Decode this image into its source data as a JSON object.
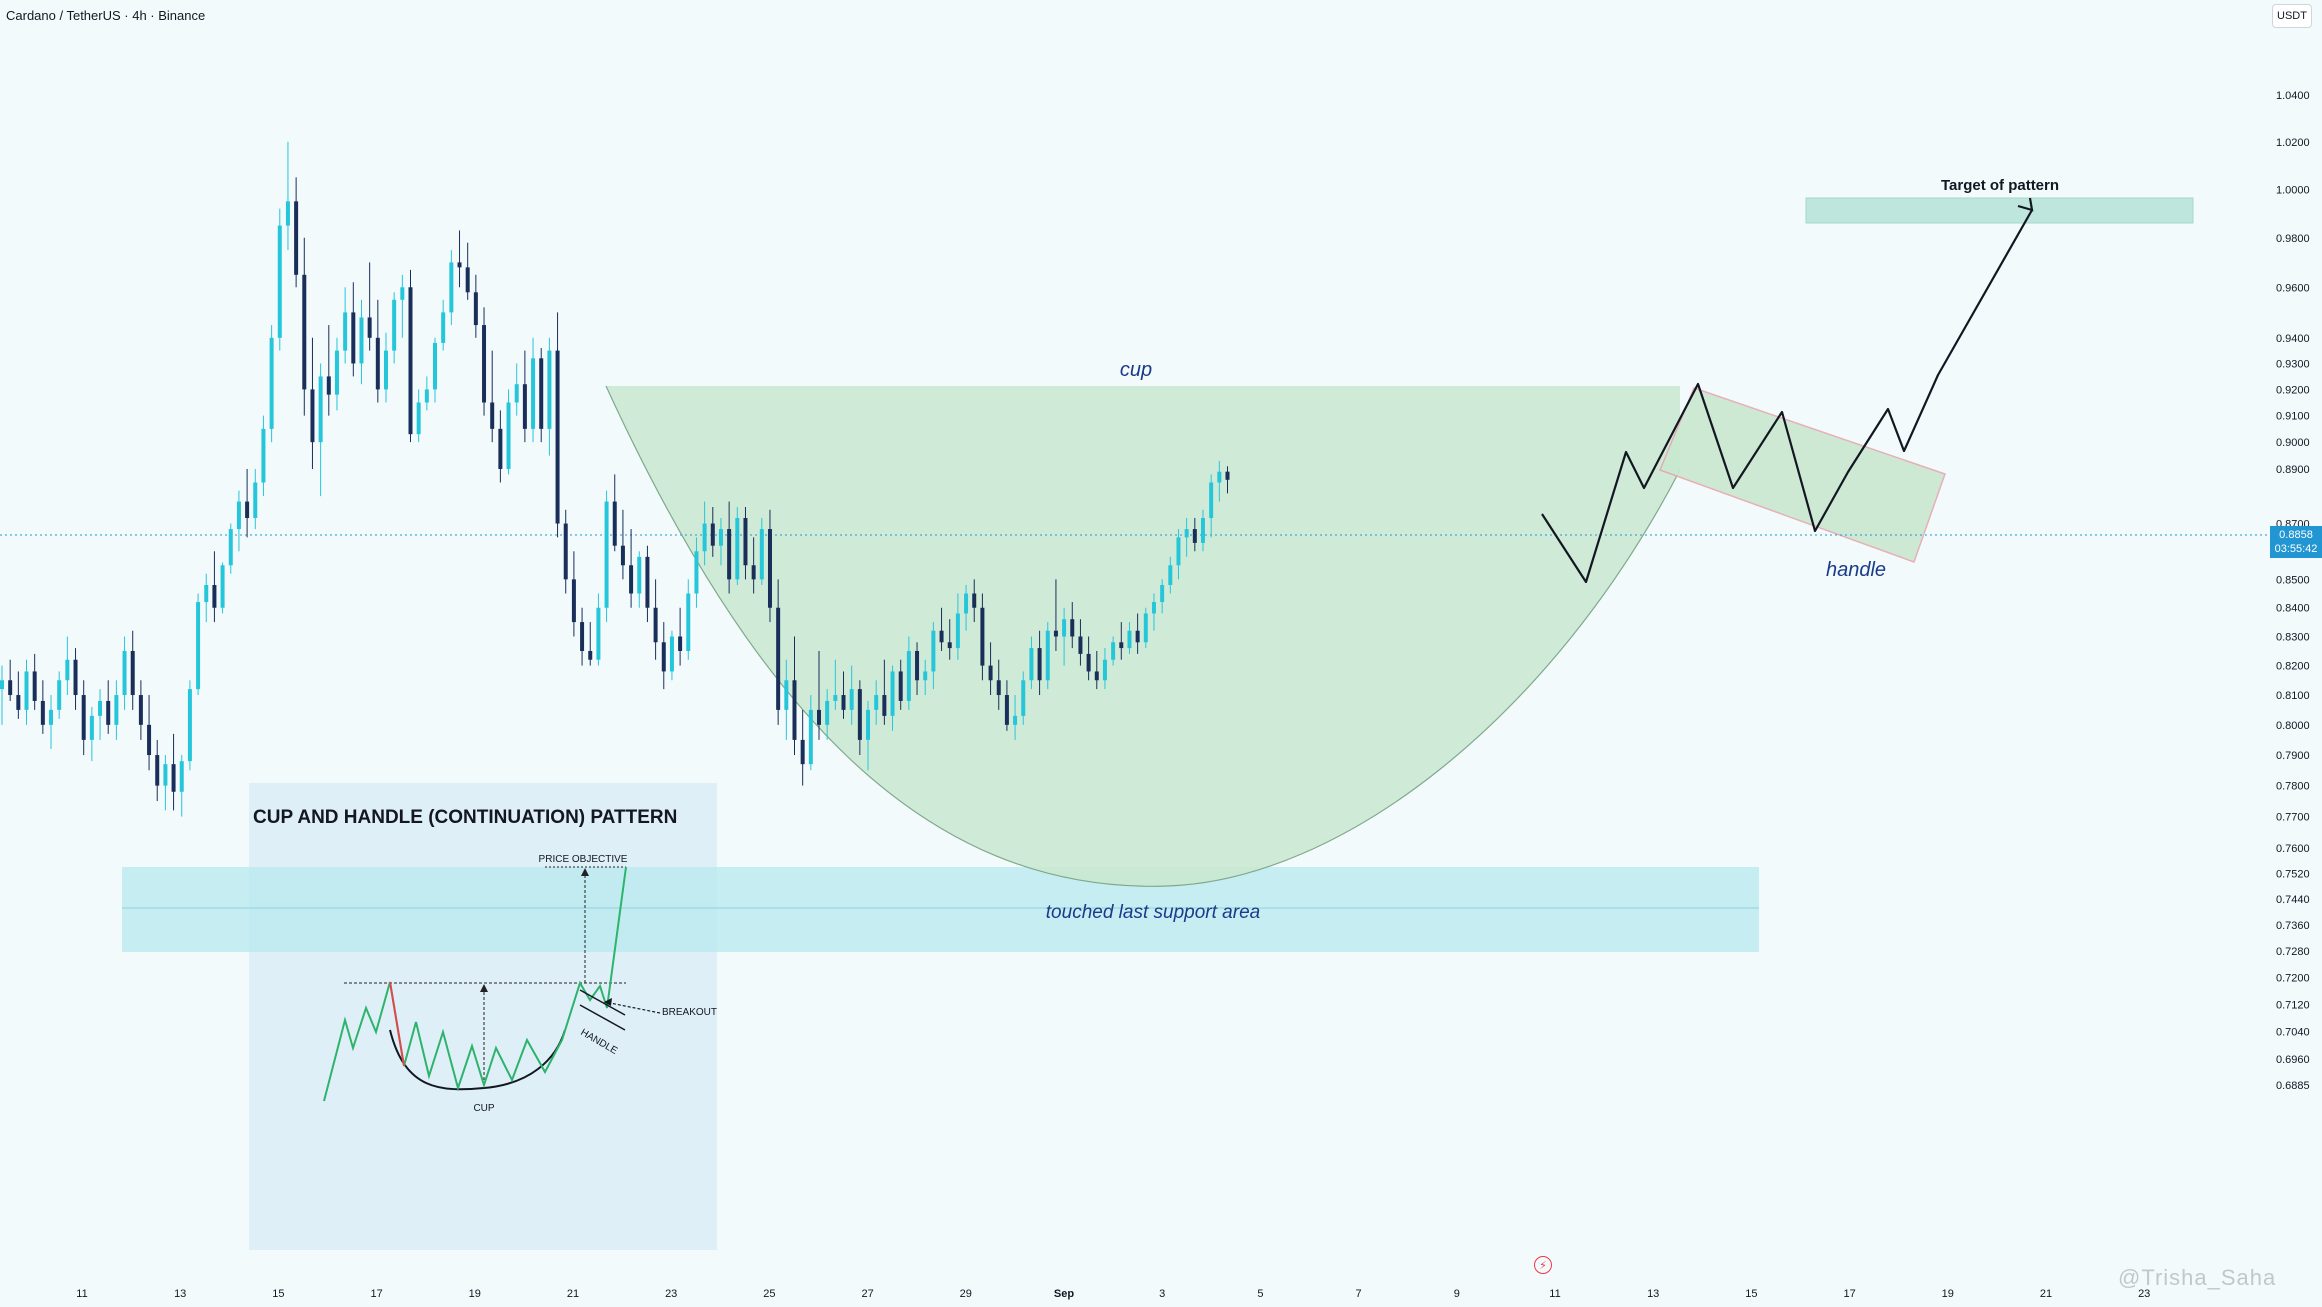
{
  "header": {
    "symbol_title": "Cardano / TetherUS · 4h · Binance",
    "currency": "USDT"
  },
  "price_tag": {
    "price": "0.8858",
    "countdown": "03:55:42"
  },
  "watermark": "@Trisha_Saha",
  "colors": {
    "up": "#26c6da",
    "down": "#1a2e5a",
    "cup_fill": "#c9e8d0",
    "support_fill": "#b7e9ef",
    "handle_border": "#e6a7b0",
    "target_fill": "#bfe6dc",
    "projection": "#131722",
    "price_line": "#2196d3",
    "annotation": "#1a3a8a",
    "inset_bg": "#d9ecf6"
  },
  "annotations": {
    "cup": "cup",
    "handle": "handle",
    "support": "touched last support area",
    "target": "Target of pattern"
  },
  "inset": {
    "title": "CUP AND HANDLE (CONTINUATION) PATTERN",
    "price_objective": "PRICE OBJECTIVE",
    "breakout": "BREAKOUT",
    "handle": "HANDLE",
    "cup": "CUP"
  },
  "chart_data": {
    "type": "candlestick",
    "title": "Cardano / TetherUS · 4h · Binance",
    "x_ticks": [
      "11",
      "13",
      "15",
      "17",
      "19",
      "21",
      "23",
      "25",
      "27",
      "29",
      "Sep",
      "3",
      "5",
      "7",
      "9",
      "11",
      "13",
      "15",
      "17",
      "19",
      "21",
      "23"
    ],
    "y_ticks": [
      "1.0400",
      "1.0200",
      "1.0000",
      "0.9800",
      "0.9600",
      "0.9400",
      "0.9300",
      "0.9200",
      "0.9100",
      "0.9000",
      "0.8900",
      "0.8700",
      "0.8600",
      "0.8500",
      "0.8400",
      "0.8300",
      "0.8200",
      "0.8100",
      "0.8000",
      "0.7900",
      "0.7800",
      "0.7700",
      "0.7600",
      "0.7520",
      "0.7440",
      "0.7360",
      "0.7280",
      "0.7200",
      "0.7120",
      "0.7040",
      "0.6960",
      "0.6885"
    ],
    "y_scale": "log",
    "last_price": 0.8858,
    "series": [
      {
        "o": 0.812,
        "h": 0.82,
        "l": 0.8,
        "c": 0.815
      },
      {
        "o": 0.815,
        "h": 0.822,
        "l": 0.808,
        "c": 0.81
      },
      {
        "o": 0.81,
        "h": 0.818,
        "l": 0.802,
        "c": 0.805
      },
      {
        "o": 0.805,
        "h": 0.822,
        "l": 0.8,
        "c": 0.818
      },
      {
        "o": 0.818,
        "h": 0.824,
        "l": 0.805,
        "c": 0.808
      },
      {
        "o": 0.808,
        "h": 0.815,
        "l": 0.797,
        "c": 0.8
      },
      {
        "o": 0.8,
        "h": 0.81,
        "l": 0.792,
        "c": 0.805
      },
      {
        "o": 0.805,
        "h": 0.818,
        "l": 0.802,
        "c": 0.815
      },
      {
        "o": 0.815,
        "h": 0.83,
        "l": 0.81,
        "c": 0.822
      },
      {
        "o": 0.822,
        "h": 0.826,
        "l": 0.805,
        "c": 0.81
      },
      {
        "o": 0.81,
        "h": 0.815,
        "l": 0.79,
        "c": 0.795
      },
      {
        "o": 0.795,
        "h": 0.806,
        "l": 0.788,
        "c": 0.803
      },
      {
        "o": 0.803,
        "h": 0.812,
        "l": 0.795,
        "c": 0.808
      },
      {
        "o": 0.808,
        "h": 0.815,
        "l": 0.797,
        "c": 0.8
      },
      {
        "o": 0.8,
        "h": 0.815,
        "l": 0.795,
        "c": 0.81
      },
      {
        "o": 0.81,
        "h": 0.83,
        "l": 0.805,
        "c": 0.825
      },
      {
        "o": 0.825,
        "h": 0.832,
        "l": 0.805,
        "c": 0.81
      },
      {
        "o": 0.81,
        "h": 0.815,
        "l": 0.795,
        "c": 0.8
      },
      {
        "o": 0.8,
        "h": 0.81,
        "l": 0.785,
        "c": 0.79
      },
      {
        "o": 0.79,
        "h": 0.795,
        "l": 0.775,
        "c": 0.78
      },
      {
        "o": 0.78,
        "h": 0.79,
        "l": 0.772,
        "c": 0.787
      },
      {
        "o": 0.787,
        "h": 0.797,
        "l": 0.772,
        "c": 0.778
      },
      {
        "o": 0.778,
        "h": 0.79,
        "l": 0.77,
        "c": 0.788
      },
      {
        "o": 0.788,
        "h": 0.815,
        "l": 0.785,
        "c": 0.812
      },
      {
        "o": 0.812,
        "h": 0.845,
        "l": 0.81,
        "c": 0.842
      },
      {
        "o": 0.842,
        "h": 0.852,
        "l": 0.835,
        "c": 0.848
      },
      {
        "o": 0.848,
        "h": 0.86,
        "l": 0.835,
        "c": 0.84
      },
      {
        "o": 0.84,
        "h": 0.856,
        "l": 0.838,
        "c": 0.855
      },
      {
        "o": 0.855,
        "h": 0.87,
        "l": 0.852,
        "c": 0.868
      },
      {
        "o": 0.868,
        "h": 0.882,
        "l": 0.86,
        "c": 0.878
      },
      {
        "o": 0.878,
        "h": 0.89,
        "l": 0.865,
        "c": 0.872
      },
      {
        "o": 0.872,
        "h": 0.89,
        "l": 0.868,
        "c": 0.885
      },
      {
        "o": 0.885,
        "h": 0.91,
        "l": 0.88,
        "c": 0.905
      },
      {
        "o": 0.905,
        "h": 0.945,
        "l": 0.9,
        "c": 0.94
      },
      {
        "o": 0.94,
        "h": 0.992,
        "l": 0.935,
        "c": 0.985
      },
      {
        "o": 0.985,
        "h": 1.02,
        "l": 0.975,
        "c": 0.995
      },
      {
        "o": 0.995,
        "h": 1.005,
        "l": 0.96,
        "c": 0.965
      },
      {
        "o": 0.965,
        "h": 0.98,
        "l": 0.91,
        "c": 0.92
      },
      {
        "o": 0.92,
        "h": 0.94,
        "l": 0.89,
        "c": 0.9
      },
      {
        "o": 0.9,
        "h": 0.93,
        "l": 0.88,
        "c": 0.925
      },
      {
        "o": 0.925,
        "h": 0.945,
        "l": 0.91,
        "c": 0.918
      },
      {
        "o": 0.918,
        "h": 0.94,
        "l": 0.912,
        "c": 0.935
      },
      {
        "o": 0.935,
        "h": 0.96,
        "l": 0.93,
        "c": 0.95
      },
      {
        "o": 0.95,
        "h": 0.962,
        "l": 0.925,
        "c": 0.93
      },
      {
        "o": 0.93,
        "h": 0.955,
        "l": 0.922,
        "c": 0.948
      },
      {
        "o": 0.948,
        "h": 0.97,
        "l": 0.935,
        "c": 0.94
      },
      {
        "o": 0.94,
        "h": 0.955,
        "l": 0.915,
        "c": 0.92
      },
      {
        "o": 0.92,
        "h": 0.942,
        "l": 0.915,
        "c": 0.935
      },
      {
        "o": 0.935,
        "h": 0.958,
        "l": 0.93,
        "c": 0.955
      },
      {
        "o": 0.955,
        "h": 0.965,
        "l": 0.94,
        "c": 0.96
      },
      {
        "o": 0.96,
        "h": 0.967,
        "l": 0.9,
        "c": 0.903
      },
      {
        "o": 0.903,
        "h": 0.92,
        "l": 0.9,
        "c": 0.915
      },
      {
        "o": 0.915,
        "h": 0.925,
        "l": 0.912,
        "c": 0.92
      },
      {
        "o": 0.92,
        "h": 0.94,
        "l": 0.915,
        "c": 0.938
      },
      {
        "o": 0.938,
        "h": 0.955,
        "l": 0.935,
        "c": 0.95
      },
      {
        "o": 0.95,
        "h": 0.975,
        "l": 0.945,
        "c": 0.97
      },
      {
        "o": 0.97,
        "h": 0.983,
        "l": 0.96,
        "c": 0.968
      },
      {
        "o": 0.968,
        "h": 0.978,
        "l": 0.955,
        "c": 0.958
      },
      {
        "o": 0.958,
        "h": 0.965,
        "l": 0.94,
        "c": 0.945
      },
      {
        "o": 0.945,
        "h": 0.952,
        "l": 0.91,
        "c": 0.915
      },
      {
        "o": 0.915,
        "h": 0.935,
        "l": 0.9,
        "c": 0.905
      },
      {
        "o": 0.905,
        "h": 0.912,
        "l": 0.885,
        "c": 0.89
      },
      {
        "o": 0.89,
        "h": 0.92,
        "l": 0.888,
        "c": 0.915
      },
      {
        "o": 0.915,
        "h": 0.93,
        "l": 0.91,
        "c": 0.922
      },
      {
        "o": 0.922,
        "h": 0.935,
        "l": 0.9,
        "c": 0.905
      },
      {
        "o": 0.905,
        "h": 0.94,
        "l": 0.9,
        "c": 0.932
      },
      {
        "o": 0.932,
        "h": 0.936,
        "l": 0.9,
        "c": 0.905
      },
      {
        "o": 0.905,
        "h": 0.94,
        "l": 0.895,
        "c": 0.935
      },
      {
        "o": 0.935,
        "h": 0.95,
        "l": 0.865,
        "c": 0.87
      },
      {
        "o": 0.87,
        "h": 0.875,
        "l": 0.845,
        "c": 0.85
      },
      {
        "o": 0.85,
        "h": 0.86,
        "l": 0.83,
        "c": 0.835
      },
      {
        "o": 0.835,
        "h": 0.84,
        "l": 0.82,
        "c": 0.825
      },
      {
        "o": 0.825,
        "h": 0.835,
        "l": 0.82,
        "c": 0.822
      },
      {
        "o": 0.822,
        "h": 0.845,
        "l": 0.82,
        "c": 0.84
      },
      {
        "o": 0.84,
        "h": 0.882,
        "l": 0.835,
        "c": 0.878
      },
      {
        "o": 0.878,
        "h": 0.888,
        "l": 0.86,
        "c": 0.862
      },
      {
        "o": 0.862,
        "h": 0.875,
        "l": 0.85,
        "c": 0.855
      },
      {
        "o": 0.855,
        "h": 0.868,
        "l": 0.84,
        "c": 0.845
      },
      {
        "o": 0.845,
        "h": 0.86,
        "l": 0.84,
        "c": 0.858
      },
      {
        "o": 0.858,
        "h": 0.862,
        "l": 0.835,
        "c": 0.84
      },
      {
        "o": 0.84,
        "h": 0.85,
        "l": 0.822,
        "c": 0.828
      },
      {
        "o": 0.828,
        "h": 0.835,
        "l": 0.812,
        "c": 0.818
      },
      {
        "o": 0.818,
        "h": 0.832,
        "l": 0.815,
        "c": 0.83
      },
      {
        "o": 0.83,
        "h": 0.84,
        "l": 0.82,
        "c": 0.825
      },
      {
        "o": 0.825,
        "h": 0.85,
        "l": 0.822,
        "c": 0.845
      },
      {
        "o": 0.845,
        "h": 0.865,
        "l": 0.84,
        "c": 0.86
      },
      {
        "o": 0.86,
        "h": 0.878,
        "l": 0.855,
        "c": 0.87
      },
      {
        "o": 0.87,
        "h": 0.876,
        "l": 0.858,
        "c": 0.862
      },
      {
        "o": 0.862,
        "h": 0.872,
        "l": 0.855,
        "c": 0.868
      },
      {
        "o": 0.868,
        "h": 0.878,
        "l": 0.845,
        "c": 0.85
      },
      {
        "o": 0.85,
        "h": 0.876,
        "l": 0.848,
        "c": 0.872
      },
      {
        "o": 0.872,
        "h": 0.876,
        "l": 0.85,
        "c": 0.855
      },
      {
        "o": 0.855,
        "h": 0.865,
        "l": 0.845,
        "c": 0.85
      },
      {
        "o": 0.85,
        "h": 0.872,
        "l": 0.848,
        "c": 0.868
      },
      {
        "o": 0.868,
        "h": 0.875,
        "l": 0.835,
        "c": 0.84
      },
      {
        "o": 0.84,
        "h": 0.85,
        "l": 0.8,
        "c": 0.805
      },
      {
        "o": 0.805,
        "h": 0.822,
        "l": 0.795,
        "c": 0.815
      },
      {
        "o": 0.815,
        "h": 0.83,
        "l": 0.79,
        "c": 0.795
      },
      {
        "o": 0.795,
        "h": 0.805,
        "l": 0.78,
        "c": 0.787
      },
      {
        "o": 0.787,
        "h": 0.81,
        "l": 0.785,
        "c": 0.805
      },
      {
        "o": 0.805,
        "h": 0.825,
        "l": 0.795,
        "c": 0.8
      },
      {
        "o": 0.8,
        "h": 0.812,
        "l": 0.795,
        "c": 0.808
      },
      {
        "o": 0.808,
        "h": 0.822,
        "l": 0.805,
        "c": 0.81
      },
      {
        "o": 0.81,
        "h": 0.818,
        "l": 0.802,
        "c": 0.805
      },
      {
        "o": 0.805,
        "h": 0.82,
        "l": 0.8,
        "c": 0.812
      },
      {
        "o": 0.812,
        "h": 0.815,
        "l": 0.79,
        "c": 0.795
      },
      {
        "o": 0.795,
        "h": 0.808,
        "l": 0.785,
        "c": 0.805
      },
      {
        "o": 0.805,
        "h": 0.815,
        "l": 0.8,
        "c": 0.81
      },
      {
        "o": 0.81,
        "h": 0.822,
        "l": 0.8,
        "c": 0.803
      },
      {
        "o": 0.803,
        "h": 0.82,
        "l": 0.798,
        "c": 0.818
      },
      {
        "o": 0.818,
        "h": 0.822,
        "l": 0.805,
        "c": 0.808
      },
      {
        "o": 0.808,
        "h": 0.83,
        "l": 0.805,
        "c": 0.825
      },
      {
        "o": 0.825,
        "h": 0.828,
        "l": 0.81,
        "c": 0.815
      },
      {
        "o": 0.815,
        "h": 0.822,
        "l": 0.81,
        "c": 0.818
      },
      {
        "o": 0.818,
        "h": 0.835,
        "l": 0.812,
        "c": 0.832
      },
      {
        "o": 0.832,
        "h": 0.84,
        "l": 0.825,
        "c": 0.828
      },
      {
        "o": 0.828,
        "h": 0.836,
        "l": 0.822,
        "c": 0.826
      },
      {
        "o": 0.826,
        "h": 0.845,
        "l": 0.822,
        "c": 0.838
      },
      {
        "o": 0.838,
        "h": 0.848,
        "l": 0.832,
        "c": 0.845
      },
      {
        "o": 0.845,
        "h": 0.85,
        "l": 0.835,
        "c": 0.84
      },
      {
        "o": 0.84,
        "h": 0.845,
        "l": 0.815,
        "c": 0.82
      },
      {
        "o": 0.82,
        "h": 0.828,
        "l": 0.81,
        "c": 0.815
      },
      {
        "o": 0.815,
        "h": 0.822,
        "l": 0.805,
        "c": 0.81
      },
      {
        "o": 0.81,
        "h": 0.815,
        "l": 0.798,
        "c": 0.8
      },
      {
        "o": 0.8,
        "h": 0.81,
        "l": 0.795,
        "c": 0.803
      },
      {
        "o": 0.803,
        "h": 0.818,
        "l": 0.8,
        "c": 0.815
      },
      {
        "o": 0.815,
        "h": 0.83,
        "l": 0.812,
        "c": 0.826
      },
      {
        "o": 0.826,
        "h": 0.832,
        "l": 0.81,
        "c": 0.815
      },
      {
        "o": 0.815,
        "h": 0.835,
        "l": 0.812,
        "c": 0.832
      },
      {
        "o": 0.832,
        "h": 0.85,
        "l": 0.825,
        "c": 0.83
      },
      {
        "o": 0.83,
        "h": 0.84,
        "l": 0.82,
        "c": 0.836
      },
      {
        "o": 0.836,
        "h": 0.842,
        "l": 0.826,
        "c": 0.83
      },
      {
        "o": 0.83,
        "h": 0.836,
        "l": 0.82,
        "c": 0.824
      },
      {
        "o": 0.824,
        "h": 0.83,
        "l": 0.815,
        "c": 0.818
      },
      {
        "o": 0.818,
        "h": 0.825,
        "l": 0.812,
        "c": 0.815
      },
      {
        "o": 0.815,
        "h": 0.826,
        "l": 0.812,
        "c": 0.822
      },
      {
        "o": 0.822,
        "h": 0.83,
        "l": 0.82,
        "c": 0.828
      },
      {
        "o": 0.828,
        "h": 0.835,
        "l": 0.822,
        "c": 0.826
      },
      {
        "o": 0.826,
        "h": 0.835,
        "l": 0.824,
        "c": 0.832
      },
      {
        "o": 0.832,
        "h": 0.838,
        "l": 0.824,
        "c": 0.828
      },
      {
        "o": 0.828,
        "h": 0.84,
        "l": 0.826,
        "c": 0.838
      },
      {
        "o": 0.838,
        "h": 0.845,
        "l": 0.832,
        "c": 0.842
      },
      {
        "o": 0.842,
        "h": 0.85,
        "l": 0.838,
        "c": 0.848
      },
      {
        "o": 0.848,
        "h": 0.858,
        "l": 0.845,
        "c": 0.855
      },
      {
        "o": 0.855,
        "h": 0.868,
        "l": 0.85,
        "c": 0.865
      },
      {
        "o": 0.865,
        "h": 0.872,
        "l": 0.858,
        "c": 0.868
      },
      {
        "o": 0.868,
        "h": 0.872,
        "l": 0.86,
        "c": 0.863
      },
      {
        "o": 0.863,
        "h": 0.875,
        "l": 0.86,
        "c": 0.872
      },
      {
        "o": 0.872,
        "h": 0.888,
        "l": 0.865,
        "c": 0.885
      },
      {
        "o": 0.885,
        "h": 0.893,
        "l": 0.878,
        "c": 0.889
      },
      {
        "o": 0.889,
        "h": 0.891,
        "l": 0.881,
        "c": 0.886
      }
    ]
  }
}
